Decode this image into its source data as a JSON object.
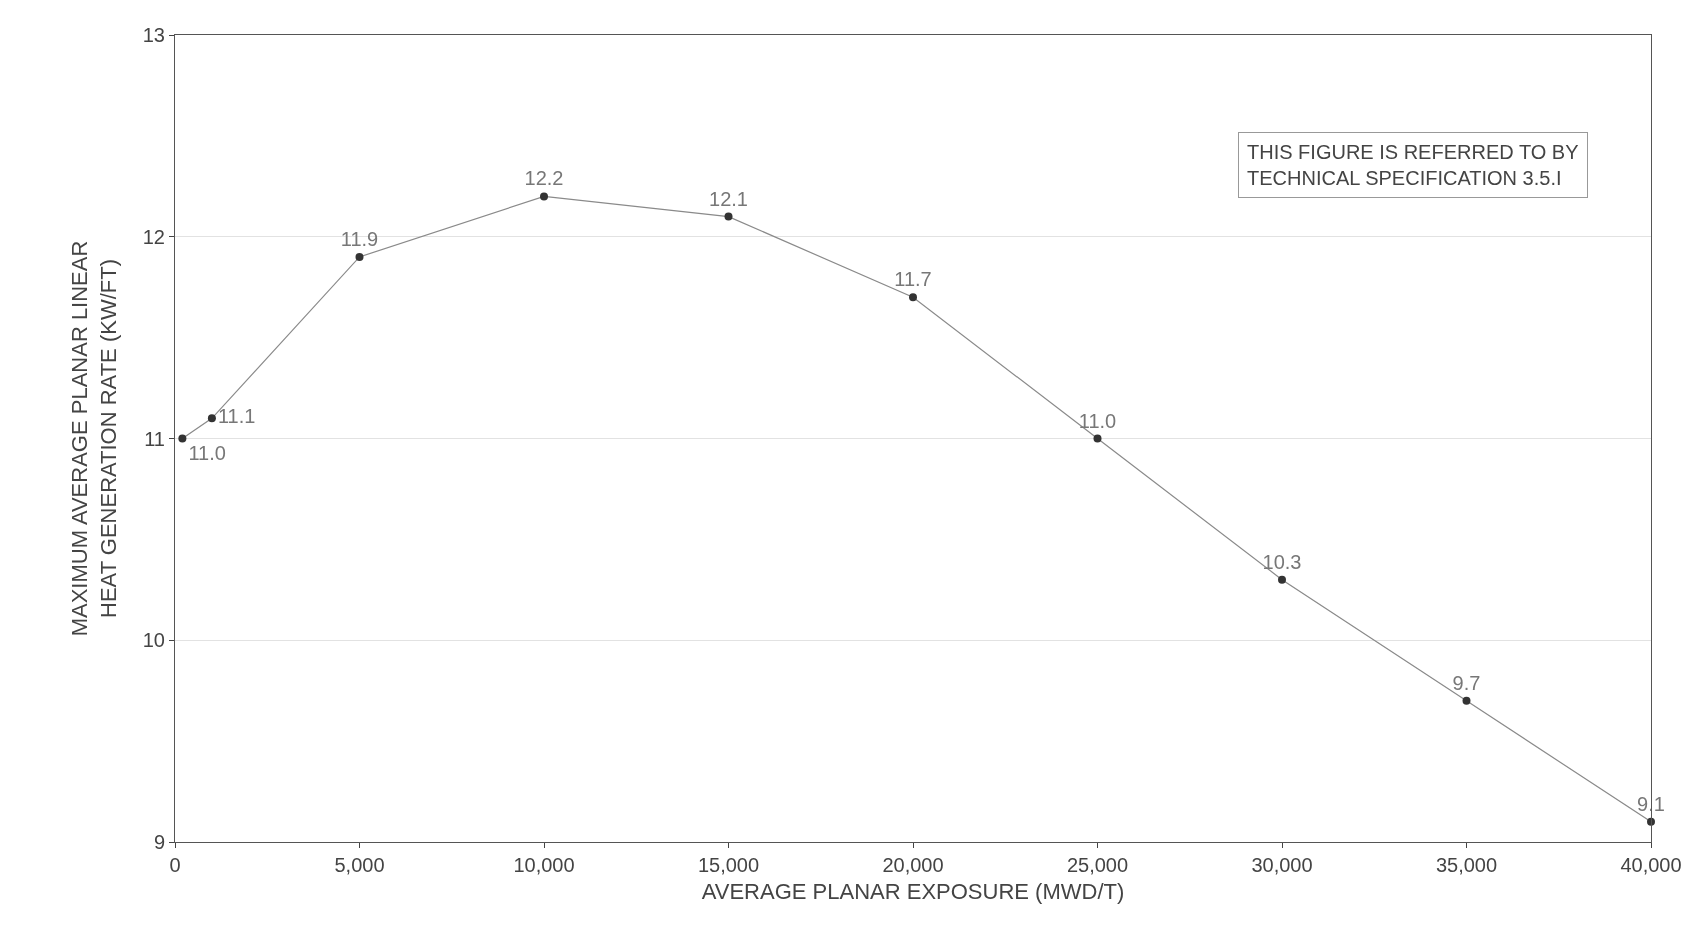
{
  "chart_data": {
    "type": "line",
    "xlabel": "AVERAGE PLANAR EXPOSURE (MWD/T)",
    "ylabel": "MAXIMUM AVERAGE PLANAR LINEAR\nHEAT GENERATION RATE (KW/FT)",
    "x": [
      200,
      1000,
      5000,
      10000,
      15000,
      20000,
      25000,
      30000,
      35000,
      40000
    ],
    "series": [
      {
        "color": "#8a8a8a",
        "values": [
          11.0,
          11.1,
          11.9,
          12.2,
          12.1,
          11.7,
          11.0,
          10.3,
          9.7,
          9.1
        ],
        "value_labels": [
          "11.0",
          "11.1",
          "11.9",
          "12.2",
          "12.1",
          "11.7",
          "11.0",
          "10.3",
          "9.7",
          "9.1"
        ]
      }
    ],
    "xlim": [
      0,
      40000
    ],
    "ylim": [
      9,
      13
    ],
    "xticks": [
      0,
      {
        "value": 5000,
        "label": "5,000"
      },
      {
        "value": 10000,
        "label": "10,000"
      },
      {
        "value": 15000,
        "label": "15,000"
      },
      {
        "value": 20000,
        "label": "20,000"
      },
      {
        "value": 25000,
        "label": "25,000"
      },
      {
        "value": 30000,
        "label": "30,000"
      },
      {
        "value": 35000,
        "label": "35,000"
      },
      {
        "value": 40000,
        "label": "40,000"
      }
    ],
    "yticks": [
      9,
      10,
      11,
      12,
      13
    ],
    "grid": "y",
    "marker": "circle",
    "line_style": "solid",
    "annotations": [
      "THIS FIGURE IS REFERRED TO BY\nTECHNICAL SPECIFICATION 3.5.I"
    ]
  }
}
